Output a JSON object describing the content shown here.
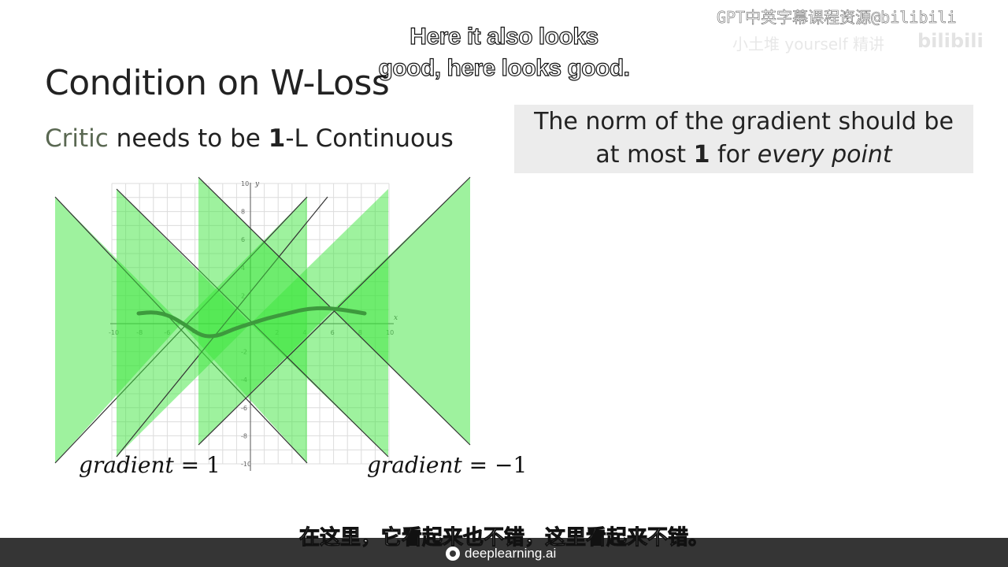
{
  "slide": {
    "title": "Condition on W-Loss",
    "subtitle": {
      "critic": "Critic",
      "middle": " needs to be ",
      "bold_one": "1",
      "rest": "-L Continuous"
    },
    "note": {
      "line1": "The norm of the gradient should be",
      "line2_pre": "at most ",
      "line2_bold": "1",
      "line2_mid": " for ",
      "line2_italic": "every point"
    },
    "graph": {
      "x_axis_label": "x",
      "y_axis_label": "y",
      "x_tick_labels": [
        "-10",
        "-8",
        "-6",
        "-4",
        "-2",
        "2",
        "4",
        "6",
        "8",
        "10"
      ],
      "y_tick_labels": [
        "10",
        "8",
        "6",
        "4",
        "2",
        "-2",
        "-4",
        "-6",
        "-8",
        "-10"
      ],
      "colors": {
        "cone_fill": "#3ee63e",
        "curve": "#3d9a3d",
        "lines": "#333333",
        "grid": "#dcdcdc"
      }
    },
    "gradient_labels": {
      "left_text": "gradient",
      "left_value": "= 1",
      "right_text": "gradient",
      "right_value": "= −1"
    }
  },
  "subtitles": {
    "english_line1": "Here it also looks",
    "english_line2": "good, here looks good.",
    "chinese": "在这里，它看起来也不错，这里看起来不错。"
  },
  "watermark": {
    "line1": "GPT中英字幕课程资源@bilibili",
    "line2": "小土堆 yourself 精讲",
    "logo": "bilibili"
  },
  "footer": {
    "brand": "deeplearning.ai"
  }
}
